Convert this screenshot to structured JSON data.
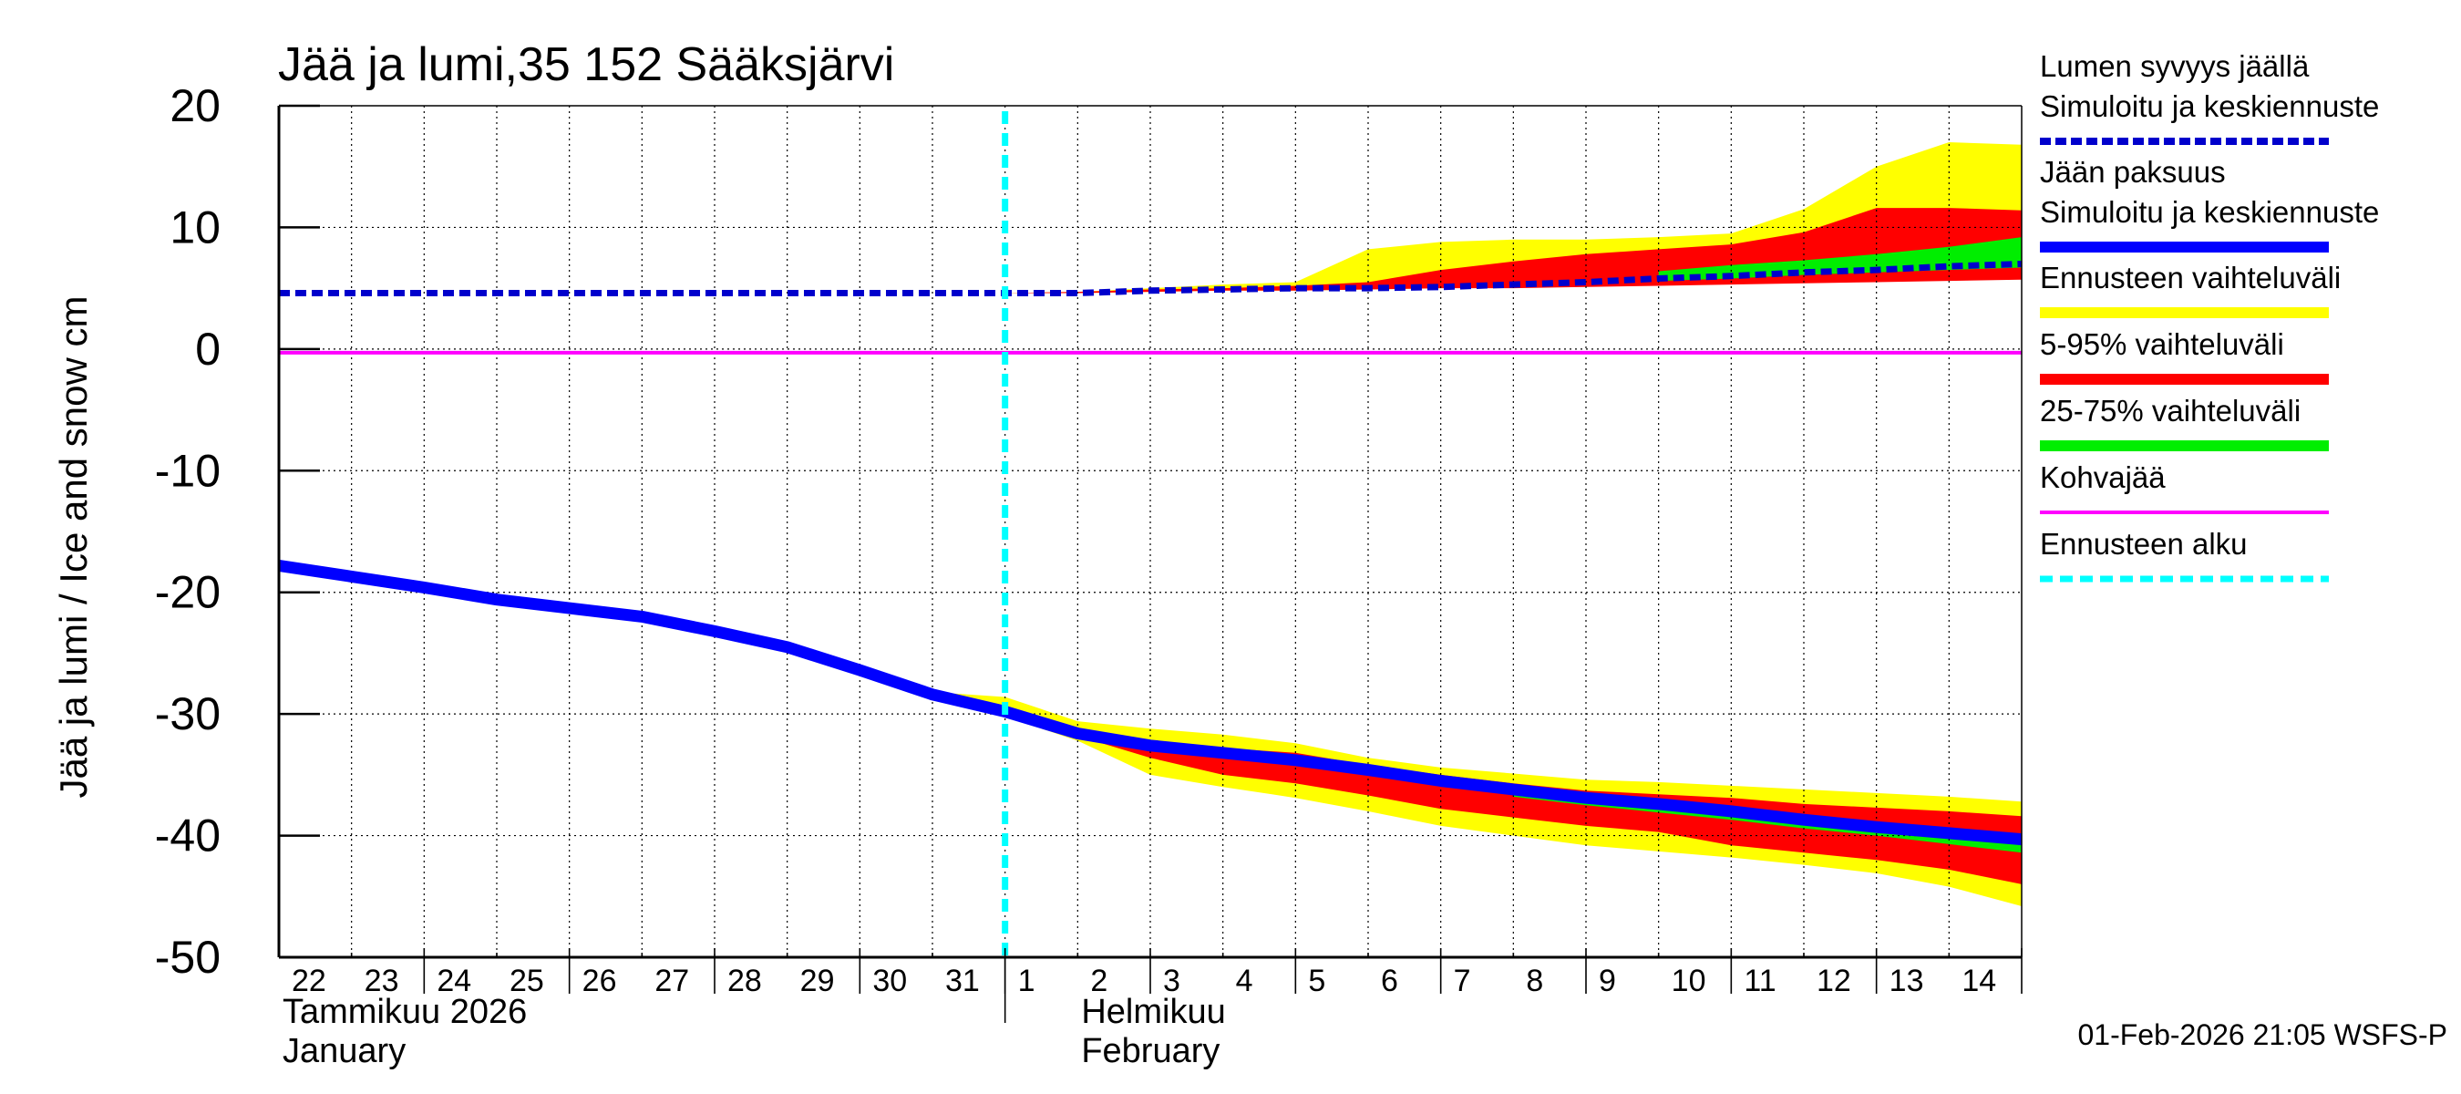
{
  "chart_data": {
    "type": "area",
    "title": "Jää ja lumi,35 152 Sääksjärvi",
    "ylabel": "Jää ja lumi / Ice and snow    cm",
    "ylim": [
      -50,
      20
    ],
    "yticks": [
      20,
      10,
      0,
      -10,
      -20,
      -30,
      -40,
      -50
    ],
    "x_labels": [
      "22",
      "23",
      "24",
      "25",
      "26",
      "27",
      "28",
      "29",
      "30",
      "31",
      "1",
      "2",
      "3",
      "4",
      "5",
      "6",
      "7",
      "8",
      "9",
      "10",
      "11",
      "12",
      "13",
      "14"
    ],
    "x_range": [
      0,
      24
    ],
    "month_labels": [
      {
        "x": 0,
        "lines": [
          "Tammikuu  2026",
          "January"
        ]
      },
      {
        "x": 11,
        "lines": [
          "Helmikuu",
          "February"
        ]
      }
    ],
    "forecast_start_x": 10,
    "footer": "01-Feb-2026 21:05 WSFS-P",
    "colors": {
      "snow": "#0000cc",
      "ice": "#0000ff",
      "range_full": "#ffff00",
      "range_5_95": "#ff0000",
      "range_25_75": "#00ee00",
      "slush": "#ff00ff",
      "forecast_start": "#00ffff"
    },
    "series": {
      "snow_depth": {
        "x": [
          0,
          1,
          2,
          3,
          4,
          5,
          6,
          7,
          8,
          9,
          10,
          11,
          12,
          13,
          14,
          15,
          16,
          17,
          18,
          19,
          20,
          21,
          22,
          23,
          24
        ],
        "values": [
          4.6,
          4.6,
          4.6,
          4.6,
          4.6,
          4.6,
          4.6,
          4.6,
          4.6,
          4.6,
          4.6,
          4.6,
          4.8,
          4.9,
          5.0,
          5.0,
          5.1,
          5.3,
          5.5,
          5.8,
          6.0,
          6.3,
          6.5,
          6.8,
          7.0
        ]
      },
      "ice_thickness": {
        "x": [
          0,
          1,
          2,
          3,
          4,
          5,
          6,
          7,
          8,
          9,
          10,
          11,
          12,
          13,
          14,
          15,
          16,
          17,
          18,
          19,
          20,
          21,
          22,
          23,
          24
        ],
        "values": [
          -17.8,
          -18.7,
          -19.6,
          -20.6,
          -21.3,
          -22.0,
          -23.2,
          -24.5,
          -26.4,
          -28.4,
          -29.8,
          -31.6,
          -32.6,
          -33.2,
          -33.8,
          -34.6,
          -35.5,
          -36.2,
          -36.9,
          -37.4,
          -38.0,
          -38.7,
          -39.3,
          -39.8,
          -40.3
        ]
      },
      "slush": {
        "x": [
          0,
          24
        ],
        "values": [
          -0.3,
          -0.3
        ]
      }
    },
    "bands": {
      "ice": {
        "x": [
          9,
          10,
          11,
          12,
          13,
          14,
          15,
          16,
          17,
          18,
          19,
          20,
          21,
          22,
          23,
          24
        ],
        "full_upper": [
          -28.2,
          -28.6,
          -30.6,
          -31.2,
          -31.7,
          -32.4,
          -33.6,
          -34.4,
          -34.9,
          -35.4,
          -35.6,
          -35.9,
          -36.2,
          -36.5,
          -36.8,
          -37.2
        ],
        "full_lower": [
          -28.4,
          -30.2,
          -32.2,
          -35.0,
          -36.0,
          -36.9,
          -38.0,
          -39.2,
          -40.0,
          -40.8,
          -41.3,
          -41.8,
          -42.4,
          -43.1,
          -44.2,
          -45.8
        ],
        "p5_95_upper": [
          null,
          -29.8,
          -31.4,
          -32.2,
          -32.8,
          -33.2,
          -34.2,
          -35.0,
          -35.7,
          -36.3,
          -36.6,
          -36.9,
          -37.4,
          -37.7,
          -38.0,
          -38.4
        ],
        "p5_95_lower": [
          null,
          -29.8,
          -31.8,
          -33.6,
          -35.0,
          -35.7,
          -36.7,
          -37.8,
          -38.5,
          -39.2,
          -39.7,
          -40.8,
          -41.4,
          -42.0,
          -42.8,
          -44.0
        ],
        "p25_75_upper": [
          null,
          null,
          null,
          null,
          null,
          null,
          null,
          null,
          -36.6,
          -37.2,
          -37.7,
          -38.2,
          -38.7,
          -39.2,
          -39.7,
          -40.2
        ],
        "p25_75_lower": [
          null,
          null,
          null,
          null,
          null,
          null,
          null,
          null,
          -36.8,
          -37.5,
          -38.1,
          -38.7,
          -39.4,
          -40.0,
          -40.7,
          -41.4
        ]
      },
      "snow": {
        "x": [
          10,
          11,
          12,
          13,
          14,
          15,
          16,
          17,
          18,
          19,
          20,
          21,
          22,
          23,
          24
        ],
        "full_upper": [
          4.6,
          4.7,
          5.0,
          5.3,
          5.5,
          8.2,
          8.8,
          9.0,
          9.0,
          9.2,
          9.5,
          11.5,
          15.0,
          17.0,
          16.8
        ],
        "full_lower": [
          4.6,
          4.6,
          4.7,
          4.8,
          4.8,
          4.9,
          5.0,
          5.1,
          5.2,
          5.3,
          5.4,
          5.5,
          5.6,
          5.7,
          5.8
        ],
        "p5_95_upper": [
          4.6,
          4.7,
          4.9,
          5.0,
          5.2,
          5.5,
          6.5,
          7.2,
          7.8,
          8.2,
          8.6,
          9.6,
          11.6,
          11.6,
          11.4
        ],
        "p5_95_lower": [
          4.6,
          4.6,
          4.7,
          4.8,
          4.8,
          4.9,
          5.0,
          5.0,
          5.1,
          5.2,
          5.3,
          5.4,
          5.5,
          5.6,
          5.7
        ],
        "p25_75_upper": [
          null,
          null,
          null,
          null,
          null,
          null,
          null,
          null,
          null,
          6.4,
          6.9,
          7.3,
          7.8,
          8.4,
          9.2
        ],
        "p25_75_lower": [
          null,
          null,
          null,
          null,
          null,
          null,
          null,
          null,
          null,
          5.6,
          5.8,
          6.1,
          6.3,
          6.5,
          6.7
        ]
      }
    },
    "legend": [
      {
        "lines": [
          "Lumen syvyys jäällä",
          "Simuloitu ja keskiennuste"
        ],
        "color": "#0000cc",
        "style": "dashed-thick"
      },
      {
        "lines": [
          "Jään paksuus",
          "Simuloitu ja keskiennuste"
        ],
        "color": "#0000ff",
        "style": "solid-thick"
      },
      {
        "lines": [
          "Ennusteen vaihteluväli"
        ],
        "color": "#ffff00",
        "style": "solid-thick"
      },
      {
        "lines": [
          "5-95% vaihteluväli"
        ],
        "color": "#ff0000",
        "style": "solid-thick"
      },
      {
        "lines": [
          "25-75% vaihteluväli"
        ],
        "color": "#00ee00",
        "style": "solid-thick"
      },
      {
        "lines": [
          "Kohvajää"
        ],
        "color": "#ff00ff",
        "style": "solid-thin"
      },
      {
        "lines": [
          "Ennusteen alku"
        ],
        "color": "#00ffff",
        "style": "dashed-thin"
      }
    ]
  }
}
